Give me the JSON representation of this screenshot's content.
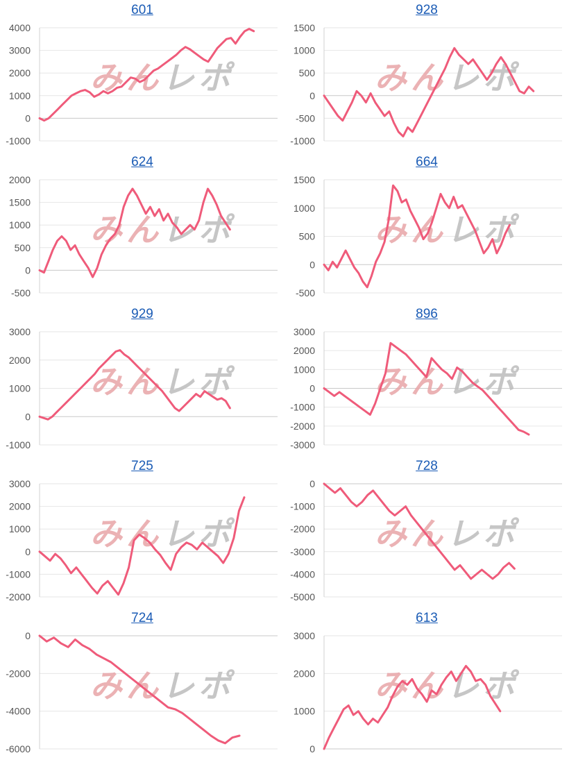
{
  "colors": {
    "line": "#ef5b7a",
    "grid": "#e6e6e6",
    "zero": "#c8c8c8",
    "axis": "#d0d0d0",
    "tick_text": "#555555",
    "title_link": "#1a5bb5",
    "watermark_pink": "#e8a5a8",
    "watermark_gray": "#bdbdbd"
  },
  "watermark": {
    "text": "みんレポ"
  },
  "chart_data": [
    {
      "type": "line",
      "title": "601",
      "ylim": [
        -1000,
        4000
      ],
      "yticks": [
        4000,
        3000,
        2000,
        1000,
        0,
        -1000
      ],
      "series": [
        {
          "values": [
            0,
            -100,
            0,
            200,
            400,
            600,
            800,
            1000,
            1100,
            1200,
            1250,
            1150,
            950,
            1050,
            1200,
            1100,
            1200,
            1350,
            1400,
            1600,
            1800,
            1750,
            1600,
            1700,
            1900,
            2100,
            2200,
            2350,
            2500,
            2650,
            2800,
            3000,
            3150,
            3050,
            2900,
            2750,
            2600,
            2500,
            2800,
            3100,
            3300,
            3500,
            3550,
            3300,
            3600,
            3850,
            3950,
            3850
          ]
        }
      ]
    },
    {
      "type": "line",
      "title": "928",
      "ylim": [
        -1000,
        1500
      ],
      "yticks": [
        1500,
        1000,
        500,
        0,
        -500,
        -1000
      ],
      "series": [
        {
          "values": [
            0,
            -150,
            -300,
            -450,
            -550,
            -350,
            -150,
            100,
            0,
            -150,
            50,
            -150,
            -300,
            -450,
            -350,
            -600,
            -800,
            -900,
            -700,
            -800,
            -600,
            -400,
            -200,
            0,
            200,
            400,
            600,
            850,
            1050,
            900,
            800,
            700,
            800,
            650,
            500,
            350,
            500,
            700,
            850,
            700,
            500,
            300,
            100,
            50,
            200,
            100
          ]
        }
      ]
    },
    {
      "type": "line",
      "title": "624",
      "ylim": [
        -500,
        2000
      ],
      "yticks": [
        2000,
        1500,
        1000,
        500,
        0,
        -500
      ],
      "series": [
        {
          "values": [
            0,
            -50,
            200,
            450,
            650,
            750,
            650,
            450,
            550,
            350,
            200,
            50,
            -150,
            50,
            350,
            550,
            700,
            800,
            1000,
            1400,
            1650,
            1800,
            1650,
            1450,
            1250,
            1400,
            1200,
            1350,
            1100,
            1250,
            1050,
            950,
            800,
            900,
            1000,
            900,
            1100,
            1500,
            1800,
            1650,
            1450,
            1200,
            1050,
            900
          ]
        }
      ]
    },
    {
      "type": "line",
      "title": "664",
      "ylim": [
        -500,
        1500
      ],
      "yticks": [
        1500,
        1000,
        500,
        0,
        -500
      ],
      "series": [
        {
          "values": [
            0,
            -100,
            50,
            -50,
            100,
            250,
            100,
            -50,
            -150,
            -300,
            -400,
            -200,
            50,
            200,
            400,
            800,
            1400,
            1300,
            1100,
            1150,
            950,
            800,
            650,
            450,
            550,
            750,
            1000,
            1250,
            1100,
            1000,
            1200,
            1000,
            1050,
            900,
            750,
            600,
            400,
            200,
            300,
            450,
            200,
            350,
            550,
            700
          ]
        }
      ]
    },
    {
      "type": "line",
      "title": "929",
      "ylim": [
        -1000,
        3000
      ],
      "yticks": [
        3000,
        2000,
        1000,
        0,
        -1000
      ],
      "series": [
        {
          "values": [
            0,
            -50,
            -100,
            0,
            150,
            300,
            450,
            600,
            750,
            900,
            1050,
            1200,
            1350,
            1500,
            1700,
            1850,
            2000,
            2150,
            2300,
            2350,
            2200,
            2100,
            1950,
            1800,
            1650,
            1500,
            1350,
            1200,
            1050,
            900,
            700,
            500,
            300,
            200,
            350,
            500,
            650,
            800,
            700,
            900,
            800,
            700,
            600,
            650,
            550,
            300
          ]
        }
      ]
    },
    {
      "type": "line",
      "title": "896",
      "ylim": [
        -3000,
        3000
      ],
      "yticks": [
        3000,
        2000,
        1000,
        0,
        -1000,
        -2000,
        -3000
      ],
      "series": [
        {
          "values": [
            0,
            -200,
            -400,
            -200,
            -400,
            -600,
            -800,
            -1000,
            -1200,
            -1400,
            -800,
            0,
            800,
            2400,
            2200,
            2000,
            1800,
            1500,
            1200,
            900,
            600,
            1600,
            1300,
            1000,
            800,
            500,
            1100,
            900,
            600,
            300,
            100,
            -100,
            -400,
            -700,
            -1000,
            -1300,
            -1600,
            -1900,
            -2200,
            -2300,
            -2450
          ]
        }
      ]
    },
    {
      "type": "line",
      "title": "725",
      "ylim": [
        -2000,
        3000
      ],
      "yticks": [
        3000,
        2000,
        1000,
        0,
        -1000,
        -2000
      ],
      "series": [
        {
          "values": [
            0,
            -200,
            -400,
            -100,
            -300,
            -600,
            -950,
            -700,
            -1000,
            -1300,
            -1600,
            -1850,
            -1500,
            -1300,
            -1600,
            -1900,
            -1400,
            -700,
            500,
            750,
            600,
            400,
            100,
            -150,
            -500,
            -800,
            -100,
            200,
            400,
            300,
            100,
            400,
            200,
            0,
            -200,
            -500,
            -100,
            600,
            1800,
            2400
          ]
        }
      ]
    },
    {
      "type": "line",
      "title": "728",
      "ylim": [
        -5000,
        0
      ],
      "yticks": [
        0,
        -1000,
        -2000,
        -3000,
        -4000,
        -5000
      ],
      "series": [
        {
          "values": [
            0,
            -200,
            -400,
            -200,
            -500,
            -800,
            -1000,
            -800,
            -500,
            -300,
            -600,
            -900,
            -1200,
            -1400,
            -1200,
            -1000,
            -1400,
            -1700,
            -2000,
            -2300,
            -2600,
            -2900,
            -3200,
            -3500,
            -3800,
            -3600,
            -3900,
            -4200,
            -4000,
            -3800,
            -4000,
            -4200,
            -4000,
            -3700,
            -3500,
            -3750
          ]
        }
      ]
    },
    {
      "type": "line",
      "title": "724",
      "ylim": [
        -6000,
        0
      ],
      "yticks": [
        0,
        -2000,
        -4000,
        -6000
      ],
      "series": [
        {
          "values": [
            0,
            -300,
            -100,
            -400,
            -600,
            -200,
            -500,
            -700,
            -1000,
            -1200,
            -1400,
            -1700,
            -2000,
            -2300,
            -2600,
            -2900,
            -3200,
            -3500,
            -3800,
            -3900,
            -4100,
            -4400,
            -4700,
            -5000,
            -5300,
            -5550,
            -5700,
            -5400,
            -5300
          ]
        }
      ]
    },
    {
      "type": "line",
      "title": "613",
      "ylim": [
        0,
        3000
      ],
      "yticks": [
        3000,
        2000,
        1000,
        0
      ],
      "series": [
        {
          "values": [
            0,
            300,
            550,
            800,
            1050,
            1150,
            900,
            1000,
            800,
            650,
            800,
            700,
            900,
            1100,
            1400,
            1650,
            1800,
            1700,
            1850,
            1600,
            1450,
            1250,
            1550,
            1450,
            1700,
            1900,
            2050,
            1800,
            2000,
            2200,
            2050,
            1800,
            1850,
            1700,
            1400,
            1200,
            1000
          ]
        }
      ]
    }
  ]
}
